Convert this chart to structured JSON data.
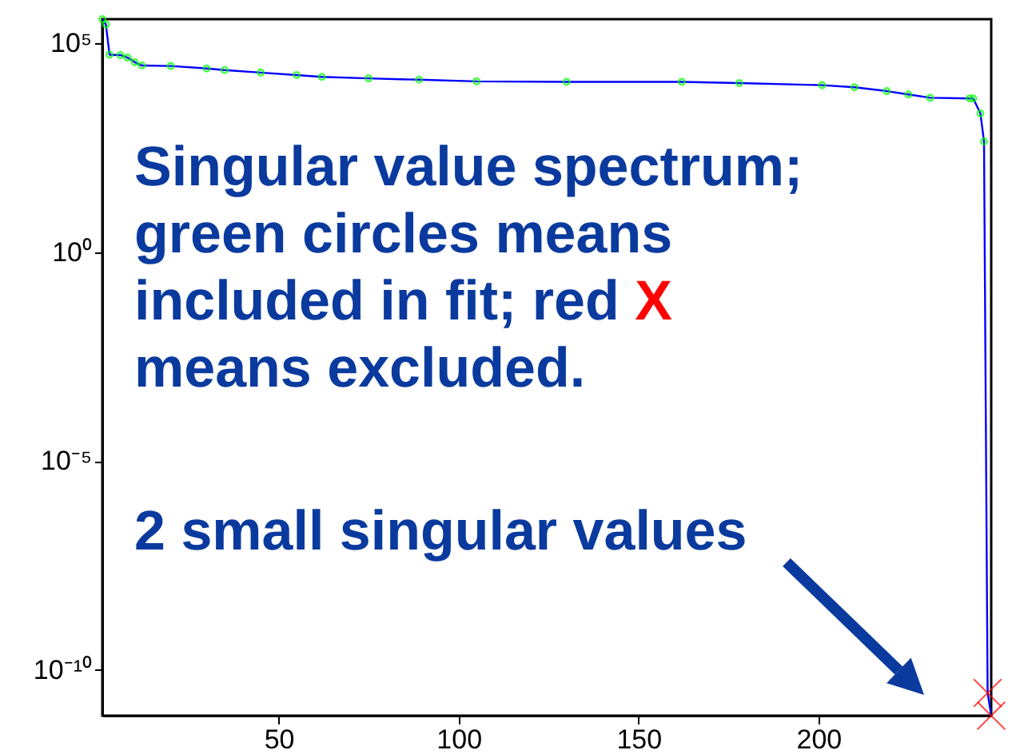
{
  "chart_data": {
    "type": "line",
    "log": "y",
    "xlim": [
      1,
      248
    ],
    "ylim": [
      8e-12,
      380000
    ],
    "xticks": [
      50,
      100,
      150,
      200
    ],
    "yticks": [
      {
        "value": 1e-10,
        "label": "10⁻¹⁰"
      },
      {
        "value": 1e-05,
        "label": "10⁻⁵"
      },
      {
        "value": 1,
        "label": "10⁰"
      },
      {
        "value": 100000,
        "label": "10⁵"
      }
    ],
    "grid": false,
    "series": [
      {
        "color": "#0000ff",
        "marker": "none",
        "x": [
          1,
          2,
          3,
          6,
          8,
          10,
          12,
          20,
          30,
          35,
          45,
          55,
          62,
          75,
          89,
          105,
          130,
          162,
          178,
          201,
          210,
          219,
          225,
          231,
          242,
          243,
          245,
          246,
          247,
          248
        ],
        "values": [
          380000,
          282000,
          53700,
          52500,
          45700,
          35500,
          29500,
          28800,
          25100,
          22900,
          20000,
          17400,
          15800,
          14500,
          13500,
          12300,
          12000,
          12000,
          11200,
          10000,
          8900,
          7200,
          6000,
          5000,
          4800,
          4800,
          2100,
          450,
          2.8e-11,
          8e-12
        ]
      },
      {
        "type": "scatter",
        "color": "#00ff00",
        "marker": "circle",
        "x": [
          1,
          2,
          3,
          6,
          8,
          10,
          12,
          20,
          30,
          35,
          45,
          55,
          62,
          75,
          89,
          105,
          130,
          162,
          178,
          201,
          210,
          219,
          225,
          231,
          242,
          243,
          245,
          246
        ],
        "values": [
          380000,
          282000,
          53700,
          52500,
          45700,
          35500,
          29500,
          28800,
          25100,
          22900,
          20000,
          17400,
          15800,
          14500,
          13500,
          12300,
          12000,
          12000,
          11200,
          10000,
          8900,
          7200,
          6000,
          5000,
          4800,
          4800,
          2100,
          450
        ]
      },
      {
        "type": "scatter",
        "color": "#ff0000",
        "marker": "cross",
        "x": [
          247,
          248
        ],
        "values": [
          2.8e-11,
          8e-12
        ]
      }
    ],
    "annotations": [
      "Singular value spectrum;\ngreen circles means\nincluded in fit; red",
      "X",
      "means excluded.",
      "2 small singular values"
    ]
  }
}
